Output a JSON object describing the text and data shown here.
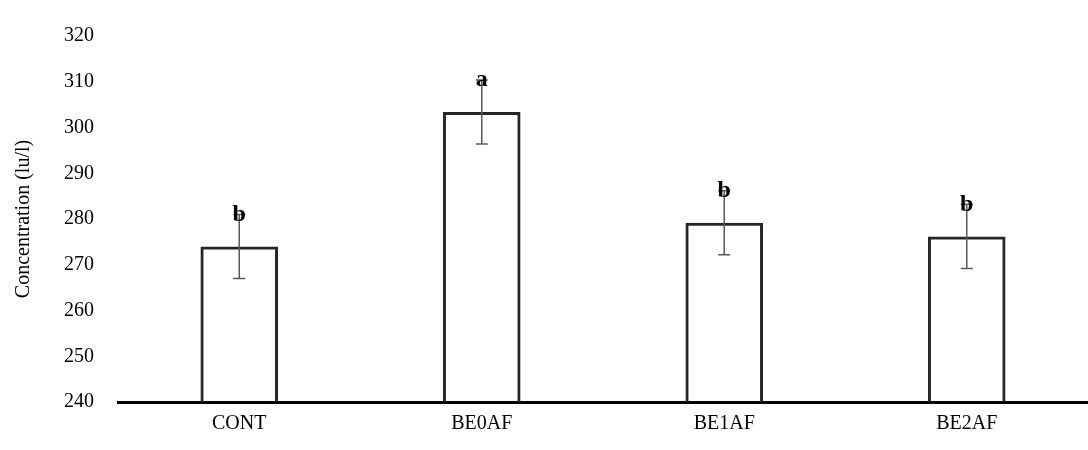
{
  "chart_data": {
    "type": "bar",
    "ylabel": "Concentration (lu/l)",
    "categories": [
      "CONT",
      "BE0AF",
      "BE1AF",
      "BE2AF"
    ],
    "values": [
      274,
      303.4,
      279.2,
      276.2
    ],
    "color": "#262626",
    "errors": [
      7,
      7,
      7,
      7
    ],
    "ylim": [
      240,
      320
    ],
    "yticks": [
      240,
      250,
      260,
      270,
      280,
      290,
      300,
      310,
      320
    ],
    "grid": false,
    "legend": false,
    "annotations": [
      {
        "text": "b",
        "x": "CONT",
        "y": 281
      },
      {
        "text": "a",
        "x": "BE0AF",
        "y": 310.4
      },
      {
        "text": "b",
        "x": "BE1AF",
        "y": 286.2
      },
      {
        "text": "b",
        "x": "BE2AF",
        "y": 283.2
      }
    ]
  }
}
